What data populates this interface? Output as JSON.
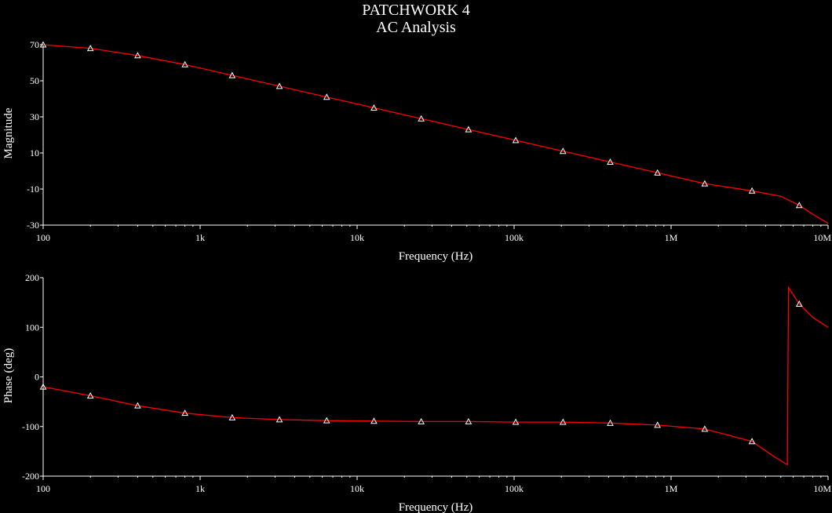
{
  "window": {
    "title": "PATCHWORK 4",
    "subtitle": "AC Analysis"
  },
  "colors": {
    "background": "#000000",
    "axes": "#ffffff",
    "trace": "#ff0000",
    "marker": "#ffffff"
  },
  "chart_data": [
    {
      "type": "line",
      "xscale": "log",
      "xlabel": "Frequency (Hz)",
      "ylabel": "Magnitude",
      "xlim": [
        100,
        10000000
      ],
      "ylim": [
        -30,
        70
      ],
      "x_ticks": [
        "100",
        "1k",
        "10k",
        "100k",
        "1M",
        "10M"
      ],
      "y_ticks": [
        "70",
        "50",
        "30",
        "10",
        "-10",
        "-30"
      ],
      "x_tick_values": [
        100,
        1000,
        10000,
        100000,
        1000000,
        10000000
      ],
      "y_tick_values": [
        70,
        50,
        30,
        10,
        -10,
        -30
      ],
      "grid": false,
      "series": [
        {
          "x": [
            100,
            200,
            400,
            800,
            1600,
            3200,
            6400,
            12800,
            25600,
            51200,
            102400,
            204800,
            409600,
            819200,
            1638400,
            3276800,
            5000000,
            6553600,
            8000000,
            10000000
          ],
          "y": [
            70,
            68,
            64,
            59,
            53,
            47,
            41,
            35,
            29,
            23,
            17,
            11,
            5,
            -1,
            -7,
            -11,
            -14,
            -19,
            -24,
            -29
          ]
        }
      ],
      "markers": {
        "symbol": "triangle",
        "x": [
          100,
          200,
          400,
          800,
          1600,
          3200,
          6400,
          12800,
          25600,
          51200,
          102400,
          204800,
          409600,
          819200,
          1638400,
          3276800,
          6553600
        ],
        "y": [
          70,
          68,
          64,
          59,
          53,
          47,
          41,
          35,
          29,
          23,
          17,
          11,
          5,
          -1,
          -7,
          -11,
          -19
        ]
      }
    },
    {
      "type": "line",
      "xscale": "log",
      "xlabel": "Frequency (Hz)",
      "ylabel": "Phase (deg)",
      "xlim": [
        100,
        10000000
      ],
      "ylim": [
        -200,
        200
      ],
      "x_ticks": [
        "100",
        "1k",
        "10k",
        "100k",
        "1M",
        "10M"
      ],
      "y_ticks": [
        "200",
        "100",
        "0",
        "-100",
        "-200"
      ],
      "x_tick_values": [
        100,
        1000,
        10000,
        100000,
        1000000,
        10000000
      ],
      "y_tick_values": [
        200,
        100,
        0,
        -100,
        -200
      ],
      "grid": false,
      "series": [
        {
          "x": [
            100,
            200,
            400,
            800,
            1600,
            3200,
            6400,
            12800,
            25600,
            51200,
            102400,
            204800,
            409600,
            819200,
            1638400,
            3276800,
            4500000,
            5500000,
            5600000,
            6553600,
            8000000,
            10000000
          ],
          "y": [
            -20,
            -38,
            -58,
            -73,
            -82,
            -86,
            -88,
            -89,
            -90,
            -90,
            -91,
            -91,
            -93,
            -97,
            -105,
            -130,
            -160,
            -177,
            180,
            147,
            120,
            100
          ]
        }
      ],
      "markers": {
        "symbol": "triangle",
        "x": [
          100,
          200,
          400,
          800,
          1600,
          3200,
          6400,
          12800,
          25600,
          51200,
          102400,
          204800,
          409600,
          819200,
          1638400,
          3276800,
          6553600
        ],
        "y": [
          -20,
          -38,
          -58,
          -73,
          -82,
          -86,
          -88,
          -89,
          -90,
          -90,
          -91,
          -91,
          -93,
          -97,
          -105,
          -130,
          147
        ]
      }
    }
  ]
}
